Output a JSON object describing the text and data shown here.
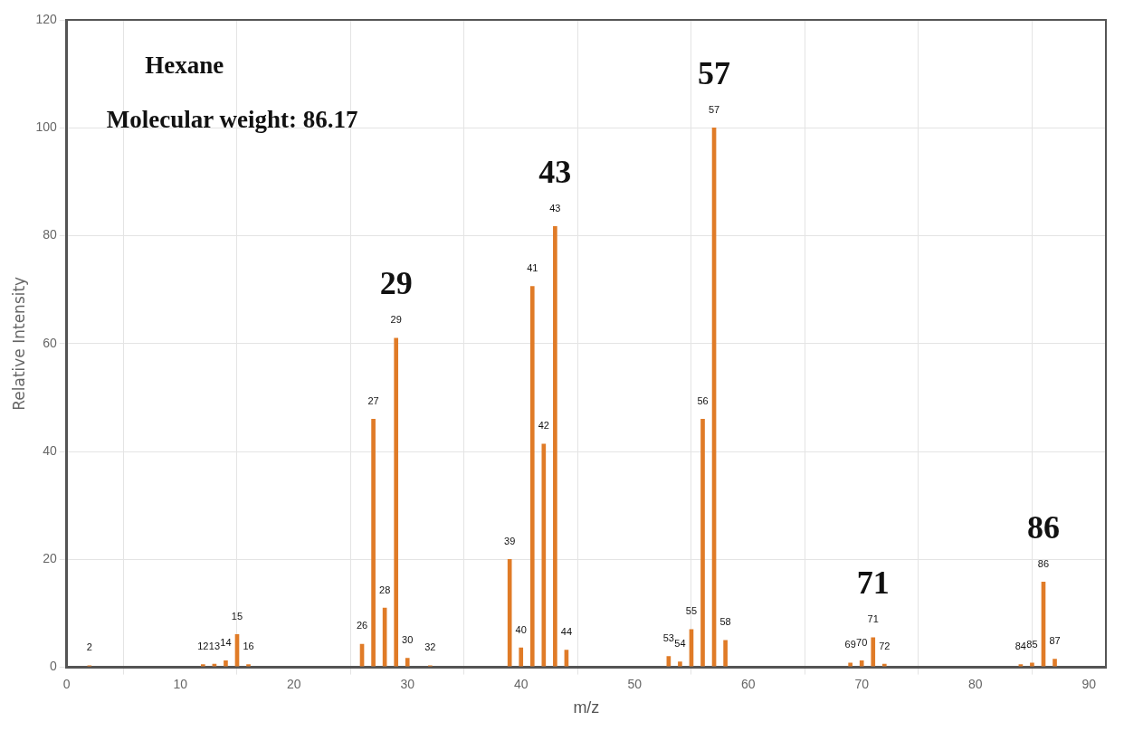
{
  "chart_data": {
    "type": "bar",
    "xlabel": "m/z",
    "ylabel": "Relative Intensity",
    "x": [
      2,
      12,
      13,
      14,
      15,
      16,
      26,
      27,
      28,
      29,
      30,
      32,
      39,
      40,
      41,
      42,
      43,
      44,
      53,
      54,
      55,
      56,
      57,
      58,
      69,
      70,
      71,
      72,
      84,
      85,
      86,
      87
    ],
    "values": [
      0.3,
      0.5,
      0.6,
      1.2,
      6.1,
      0.5,
      4.3,
      46,
      11,
      61,
      1.7,
      0.3,
      20,
      3.6,
      70.6,
      41.4,
      81.7,
      3.2,
      2,
      1,
      7,
      46,
      100,
      5,
      0.8,
      1.2,
      5.5,
      0.6,
      0.5,
      0.8,
      15.8,
      1.5
    ],
    "color": "#e07b27",
    "xlim": [
      0,
      91.5
    ],
    "xticks": [
      0,
      10,
      20,
      30,
      40,
      50,
      60,
      70,
      80,
      90
    ],
    "ylim": [
      0,
      120
    ],
    "yticks": [
      0,
      20,
      40,
      60,
      80,
      100,
      120
    ],
    "grid": true,
    "legend": false,
    "annotations": [
      "Hexane",
      "Molecular weight: 86.17",
      {
        "text": "2",
        "x": 2,
        "y": 0.3
      },
      {
        "text": "12",
        "x": 12,
        "y": 0.5
      },
      {
        "text": "13",
        "x": 13,
        "y": 0.6
      },
      {
        "text": "14",
        "x": 14,
        "y": 1.2
      },
      {
        "text": "15",
        "x": 15,
        "y": 6.1
      },
      {
        "text": "16",
        "x": 16,
        "y": 0.5
      },
      {
        "text": "26",
        "x": 26,
        "y": 4.3
      },
      {
        "text": "27",
        "x": 27,
        "y": 46
      },
      {
        "text": "28",
        "x": 28,
        "y": 11
      },
      {
        "text": "29",
        "x": 29,
        "y": 61
      },
      {
        "text": "30",
        "x": 30,
        "y": 1.7
      },
      {
        "text": "32",
        "x": 32,
        "y": 0.3
      },
      {
        "text": "39",
        "x": 39,
        "y": 20
      },
      {
        "text": "40",
        "x": 40,
        "y": 3.6
      },
      {
        "text": "41",
        "x": 41,
        "y": 70.6
      },
      {
        "text": "42",
        "x": 42,
        "y": 41.4
      },
      {
        "text": "43",
        "x": 43,
        "y": 81.7
      },
      {
        "text": "44",
        "x": 44,
        "y": 3.2
      },
      {
        "text": "53",
        "x": 53,
        "y": 2
      },
      {
        "text": "54",
        "x": 54,
        "y": 1
      },
      {
        "text": "55",
        "x": 55,
        "y": 7
      },
      {
        "text": "56",
        "x": 56,
        "y": 46
      },
      {
        "text": "57",
        "x": 57,
        "y": 100
      },
      {
        "text": "58",
        "x": 58,
        "y": 5
      },
      {
        "text": "69",
        "x": 69,
        "y": 0.8
      },
      {
        "text": "70",
        "x": 70,
        "y": 1.2
      },
      {
        "text": "71",
        "x": 71,
        "y": 5.5
      },
      {
        "text": "72",
        "x": 72,
        "y": 0.6
      },
      {
        "text": "84",
        "x": 84,
        "y": 0.5
      },
      {
        "text": "85",
        "x": 85,
        "y": 0.8
      },
      {
        "text": "86",
        "x": 86,
        "y": 15.8
      },
      {
        "text": "87",
        "x": 87,
        "y": 1.5
      },
      {
        "text": "29",
        "x": 29,
        "y": 61
      },
      {
        "text": "43",
        "x": 43,
        "y": 81.7
      },
      {
        "text": "57",
        "x": 57,
        "y": 100
      },
      {
        "text": "71",
        "x": 71,
        "y": 5.5
      },
      {
        "text": "86",
        "x": 86,
        "y": 15.8
      }
    ]
  }
}
